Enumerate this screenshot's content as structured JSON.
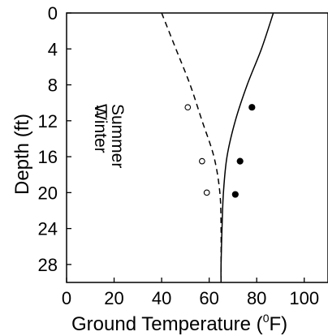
{
  "chart_data": {
    "type": "line",
    "xlabel": "Ground Temperature (",
    "xlabel_sup": "0",
    "xlabel_unit": "F)",
    "ylabel": "Depth (ft)",
    "xlim": [
      0,
      110
    ],
    "ylim": [
      0,
      30
    ],
    "y_inverted": true,
    "grid": false,
    "x_ticks": [
      0,
      20,
      40,
      60,
      80,
      100
    ],
    "x_tick_labels": [
      "0",
      "20",
      "40",
      "60",
      "80",
      "100"
    ],
    "y_ticks": [
      0,
      4,
      8,
      12,
      16,
      20,
      24,
      28
    ],
    "y_tick_labels": [
      "0",
      "4",
      "8",
      "12",
      "16",
      "20",
      "24",
      "28"
    ],
    "legend": {
      "placement": "left",
      "entries": [
        {
          "label": "Summer",
          "line_style": "solid"
        },
        {
          "label": "Winter",
          "line_style": "dashed"
        }
      ]
    },
    "series": [
      {
        "name": "Summer",
        "line_style": "solid",
        "color": "#000000",
        "points": [
          {
            "temp": 87,
            "depth": 0
          },
          {
            "temp": 82,
            "depth": 4
          },
          {
            "temp": 76,
            "depth": 8
          },
          {
            "temp": 71,
            "depth": 12
          },
          {
            "temp": 67.5,
            "depth": 16
          },
          {
            "temp": 66,
            "depth": 20
          },
          {
            "temp": 65.4,
            "depth": 24
          },
          {
            "temp": 65,
            "depth": 28
          },
          {
            "temp": 65,
            "depth": 30
          }
        ]
      },
      {
        "name": "Winter",
        "line_style": "dashed",
        "color": "#000000",
        "points": [
          {
            "temp": 40,
            "depth": 0
          },
          {
            "temp": 46,
            "depth": 4
          },
          {
            "temp": 52,
            "depth": 8
          },
          {
            "temp": 57,
            "depth": 12
          },
          {
            "temp": 62,
            "depth": 16
          },
          {
            "temp": 64.5,
            "depth": 20
          },
          {
            "temp": 65,
            "depth": 24
          },
          {
            "temp": 65,
            "depth": 28
          },
          {
            "temp": 65,
            "depth": 30
          }
        ]
      }
    ],
    "markers": [
      {
        "style": "open",
        "temp": 51,
        "depth": 10.5
      },
      {
        "style": "open",
        "temp": 57,
        "depth": 16.5
      },
      {
        "style": "open",
        "temp": 59,
        "depth": 20
      },
      {
        "style": "filled",
        "temp": 78,
        "depth": 10.5
      },
      {
        "style": "filled",
        "temp": 73,
        "depth": 16.5
      },
      {
        "style": "filled",
        "temp": 71,
        "depth": 20.2
      }
    ]
  }
}
